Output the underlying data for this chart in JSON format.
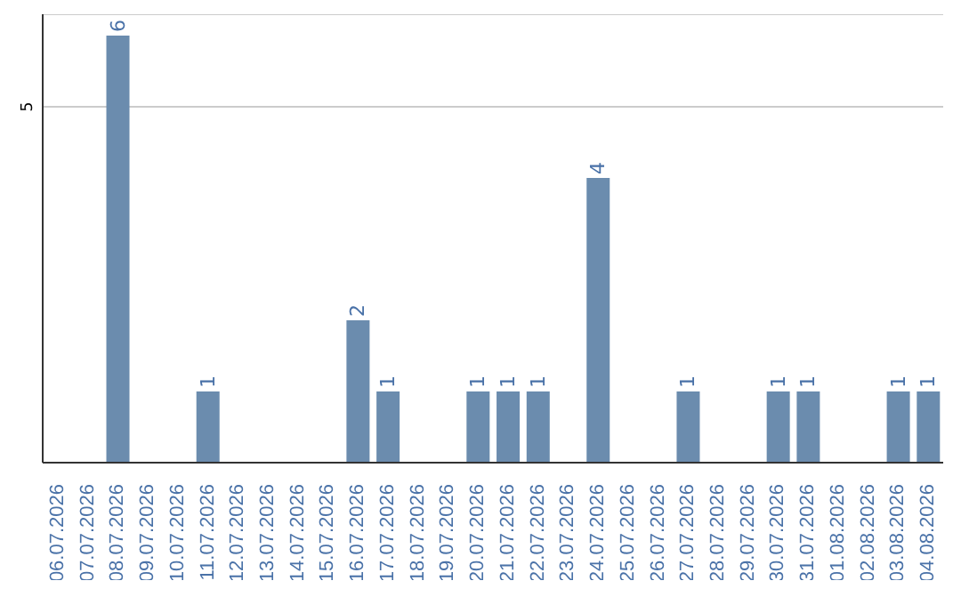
{
  "chart_data": {
    "type": "bar",
    "categories": [
      "06.07.2026",
      "07.07.2026",
      "08.07.2026",
      "09.07.2026",
      "10.07.2026",
      "11.07.2026",
      "12.07.2026",
      "13.07.2026",
      "14.07.2026",
      "15.07.2026",
      "16.07.2026",
      "17.07.2026",
      "18.07.2026",
      "19.07.2026",
      "20.07.2026",
      "21.07.2026",
      "22.07.2026",
      "23.07.2026",
      "24.07.2026",
      "25.07.2026",
      "26.07.2026",
      "27.07.2026",
      "28.07.2026",
      "29.07.2026",
      "30.07.2026",
      "31.07.2026",
      "01.08.2026",
      "02.08.2026",
      "03.08.2026",
      "04.08.2026"
    ],
    "values": [
      0,
      0,
      6,
      0,
      0,
      1,
      0,
      0,
      0,
      0,
      2,
      1,
      0,
      0,
      1,
      1,
      1,
      0,
      4,
      0,
      0,
      1,
      0,
      0,
      1,
      1,
      0,
      0,
      1,
      1
    ],
    "value_labels": [
      null,
      null,
      "6",
      null,
      null,
      "1",
      null,
      null,
      null,
      null,
      "2",
      "1",
      null,
      null,
      "1",
      "1",
      "1",
      null,
      "4",
      null,
      null,
      "1",
      null,
      null,
      "1",
      "1",
      null,
      null,
      "1",
      "1"
    ],
    "color": "#6b8cae",
    "ylim": [
      0,
      6.3
    ],
    "yticks": [
      5
    ],
    "grid": "y"
  }
}
